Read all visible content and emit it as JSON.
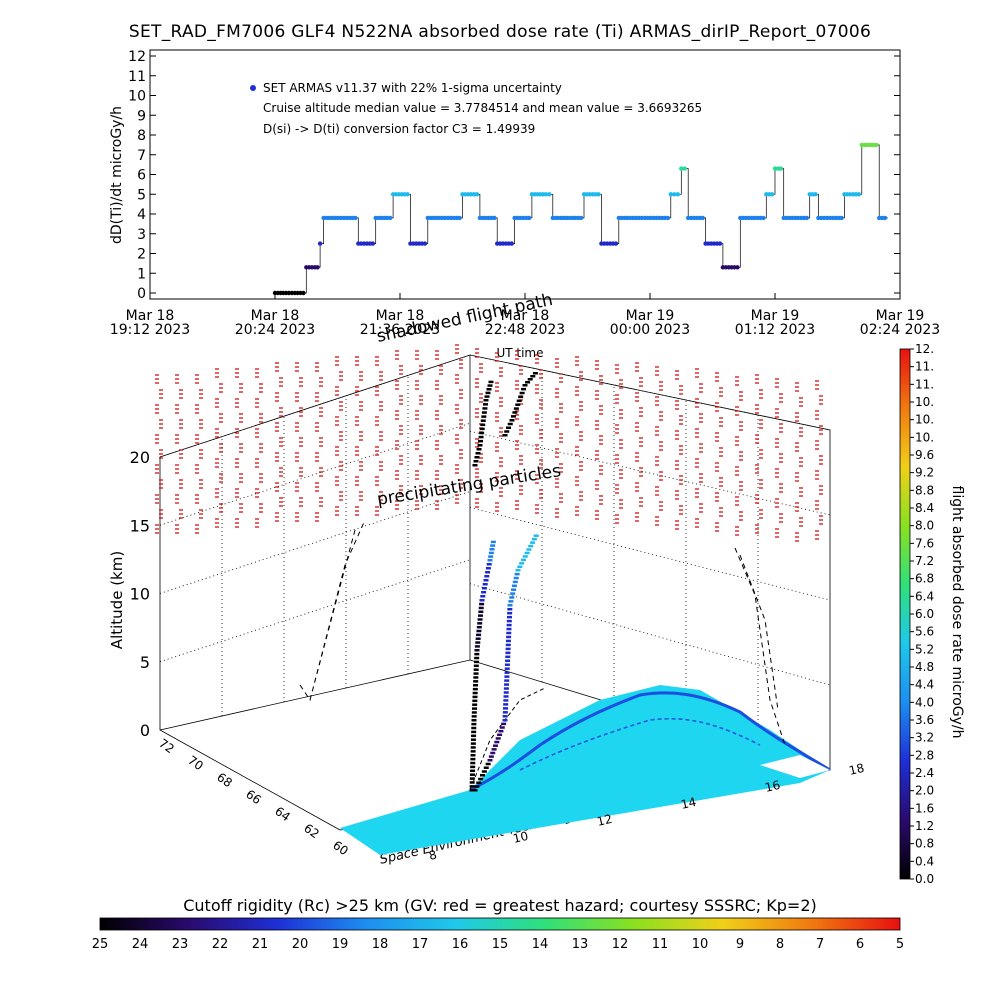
{
  "title": "SET_RAD_FM7006  GLF4 N522NA absorbed dose rate (Ti) ARMAS_dirIP_Report_07006",
  "timeseries": {
    "ylabel": "dD(Ti)/dt microGy/h",
    "legend": "SET ARMAS v11.37 with 22% 1-sigma uncertainty",
    "note1": "Cruise altitude median value = 3.7784514 and mean value = 3.6693265",
    "note2": "D(si) -> D(ti) conversion factor C3 = 1.49939",
    "xticks": [
      {
        "l1": "Mar 18",
        "l2": "19:12 2023"
      },
      {
        "l1": "Mar 18",
        "l2": "20:24 2023"
      },
      {
        "l1": "Mar 18",
        "l2": "21:36 2023"
      },
      {
        "l1": "Mar 18",
        "l2": "22:48 2023"
      },
      {
        "l1": "Mar 19",
        "l2": "00:00 2023"
      },
      {
        "l1": "Mar 19",
        "l2": "01:12 2023"
      },
      {
        "l1": "Mar 19",
        "l2": "02:24 2023"
      }
    ],
    "xlabel": "UT time"
  },
  "chart_data": [
    {
      "type": "scatter",
      "title": "SET_RAD_FM7006  GLF4 N522NA absorbed dose rate (Ti) ARMAS_dirIP_Report_07006",
      "xlabel": "UT time",
      "ylabel": "dD(Ti)/dt microGy/h",
      "x_range": [
        "Mar 18 19:12 2023",
        "Mar 19 02:24 2023"
      ],
      "ylim": [
        0,
        12
      ],
      "grid": false,
      "series": [
        {
          "name": "SET ARMAS v11.37 with 22% 1-sigma uncertainty",
          "x_minutes_from_first_tick": [
            0,
            72,
            80,
            85,
            90,
            95,
            98,
            100,
            110,
            120,
            130,
            140,
            150,
            160,
            170,
            180,
            190,
            200,
            210,
            220,
            228,
            232,
            240,
            250,
            260,
            270,
            280,
            290,
            300,
            306,
            310,
            320,
            330,
            340,
            350,
            355,
            360,
            365,
            370,
            380,
            385,
            390,
            400,
            410,
            420,
            425
          ],
          "values": [
            null,
            0,
            0,
            0,
            1.3,
            1.3,
            2.5,
            3.8,
            3.8,
            2.5,
            3.8,
            5.0,
            2.5,
            3.8,
            3.8,
            5.0,
            3.8,
            2.5,
            3.8,
            5.0,
            5.0,
            3.8,
            3.8,
            5.0,
            2.5,
            3.8,
            3.8,
            3.8,
            5.0,
            6.3,
            3.8,
            2.5,
            1.3,
            3.8,
            3.8,
            5.0,
            6.3,
            3.8,
            3.8,
            5.0,
            3.8,
            3.8,
            5.0,
            7.5,
            3.8,
            2.5
          ]
        }
      ],
      "annotations": [
        "Cruise altitude median value = 3.7784514 and mean value = 3.6693265",
        "D(si) -> D(ti) conversion factor C3 = 1.49939"
      ]
    },
    {
      "type": "scatter",
      "subtype": "3d flight track over cutoff rigidity map",
      "zlabel": "Altitude (km)",
      "zlim": [
        0,
        20
      ],
      "lat_ticks": [
        60,
        62,
        64,
        66,
        68,
        70,
        72
      ],
      "lon_ticks": [
        8,
        10,
        12,
        14,
        16,
        18
      ],
      "annotations": [
        "shadowed flight path",
        "precipitating particles"
      ],
      "colorbar_dose": {
        "label": "flight absorbed dose rate microGy/h",
        "min": 0.0,
        "max": 12.0,
        "ticks": [
          "0.0",
          "0.4",
          "0.8",
          "1.2",
          "1.6",
          "2.0",
          "2.4",
          "2.8",
          "3.2",
          "3.6",
          "4.0",
          "4.4",
          "4.8",
          "5.2",
          "5.6",
          "6.0",
          "6.4",
          "6.8",
          "7.2",
          "7.6",
          "8.0",
          "8.4",
          "8.8",
          "9.2",
          "9.6",
          "10.",
          "10.",
          "10.",
          "11.",
          "11.",
          "12."
        ]
      },
      "colorbar_rc": {
        "label": "Cutoff rigidity (Rc) >25 km (GV: red = greatest hazard; courtesy SSSRC; Kp=2)",
        "ticks": [
          25,
          24,
          23,
          22,
          21,
          20,
          19,
          18,
          17,
          16,
          15,
          14,
          13,
          12,
          11,
          10,
          9,
          8,
          7,
          6,
          5
        ]
      }
    }
  ],
  "scene": {
    "shadow_label": "shadowed flight path",
    "precip_label": "precipitating particles",
    "zlabel": "Altitude (km)",
    "credit": "Space Environment Technologies ARMAS v11.37"
  },
  "colorbar_dose": {
    "label": "flight absorbed dose rate microGy/h"
  },
  "bottom": {
    "title": "Cutoff rigidity (Rc) >25 km (GV: red = greatest hazard; courtesy SSSRC; Kp=2)"
  },
  "colors": {
    "dose_ramp": [
      "#000000",
      "#2a0a6e",
      "#1e2fd6",
      "#1d8ef0",
      "#1fc8ea",
      "#2fe07a",
      "#8ae020",
      "#f0d018",
      "#f07a10",
      "#e81010"
    ],
    "map_fill": "#1fd6f0",
    "map_coast": "#1a4fe0",
    "precip": "#d41010"
  }
}
